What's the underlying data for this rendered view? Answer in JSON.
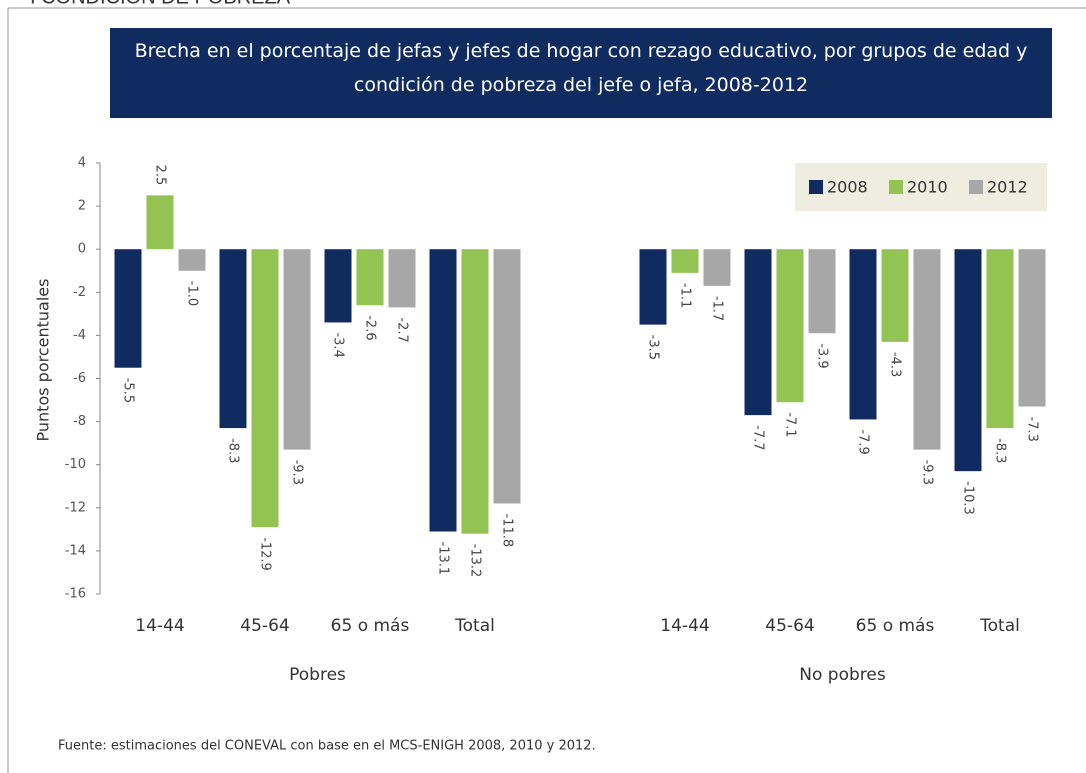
{
  "page_header": "I CONDICIÓN DE POBREZA",
  "chart_data": {
    "type": "bar",
    "title": "Brecha en el porcentaje de jefas y jefes de hogar con rezago educativo, por grupos de edad y condición de pobreza del jefe o jefa, 2008-2012",
    "y_label": "Puntos porcentuales",
    "categories": [
      "14-44",
      "45-64",
      "65 o más",
      "Total",
      "14-44",
      "45-64",
      "65 o más",
      "Total"
    ],
    "group_labels": [
      "Pobres",
      "No pobres"
    ],
    "series": [
      {
        "name": "2008",
        "color": "#0f2b5f",
        "values": [
          -5.5,
          -8.3,
          -3.4,
          -13.1,
          -3.5,
          -7.7,
          -7.9,
          -10.3
        ],
        "value_labels": [
          "-5.5",
          "-8.3",
          "-3.4",
          "-13.1",
          "-3.5",
          "-7.7",
          "-7.9",
          "-10.3"
        ]
      },
      {
        "name": "2010",
        "color": "#93c353",
        "values": [
          2.5,
          -12.9,
          -2.6,
          -13.2,
          -1.1,
          -7.1,
          -4.3,
          -8.3
        ],
        "value_labels": [
          "2.5",
          "-12.9",
          "-2.6",
          "-13.2",
          "-1.1",
          "-7.1",
          "-4.3",
          "-8.3"
        ]
      },
      {
        "name": "2012",
        "color": "#a7a7a7",
        "values": [
          -1.0,
          -9.3,
          -2.7,
          -11.8,
          -1.7,
          -3.9,
          -9.3,
          -7.3
        ],
        "value_labels": [
          "-1.0",
          "-9.3",
          "-2.7",
          "-11.8",
          "-1.7",
          "-3.9",
          "-9.3",
          "-7.3"
        ]
      }
    ],
    "ylim": [
      -16,
      4
    ],
    "yticks": [
      4,
      2,
      0,
      -2,
      -4,
      -6,
      -8,
      -10,
      -12,
      -14,
      -16
    ],
    "legend": "top-right",
    "source": "Fuente: estimaciones del  CONEVAL con base en el MCS-ENIGH 2008, 2010 y 2012."
  }
}
